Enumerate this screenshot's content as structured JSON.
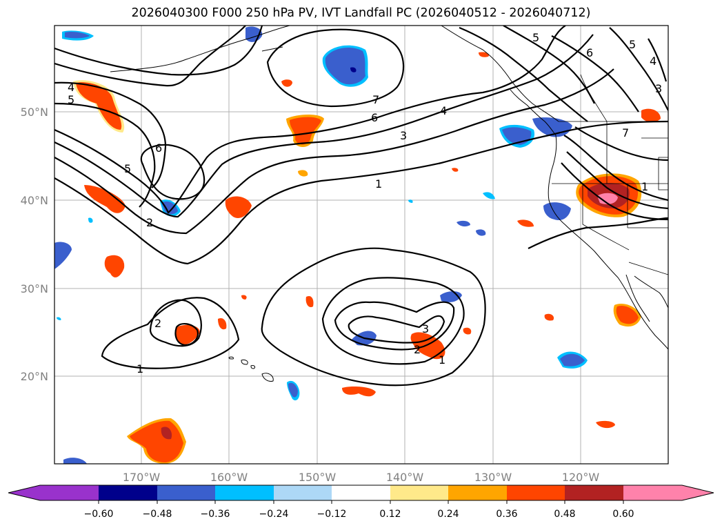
{
  "title": "2026040300 F000 250 hPa PV, IVT Landfall PC (2026040512 - 2026040712)",
  "lat_labels": [
    "50°N",
    "40°N",
    "30°N",
    "20°N"
  ],
  "lon_labels": [
    "170°W",
    "160°W",
    "150°W",
    "140°W",
    "130°W",
    "120°W"
  ],
  "contour_labels": {
    "c1a": "1",
    "c1b": "1",
    "c1c": "1",
    "c1d": "1",
    "c2a": "2",
    "c2b": "2",
    "c2c": "2",
    "c3a": "3",
    "c3b": "3",
    "c3c": "3",
    "c4a": "4",
    "c4b": "4",
    "c4c": "4",
    "c5a": "5",
    "c5b": "5",
    "c5c": "5",
    "c5d": "5",
    "c6a": "6",
    "c6b": "6",
    "c6c": "6",
    "c7a": "7",
    "c7b": "7"
  },
  "colorbar": {
    "ticks": [
      "−0.60",
      "−0.48",
      "−0.36",
      "−0.24",
      "−0.12",
      "0.12",
      "0.24",
      "0.36",
      "0.48",
      "0.60"
    ],
    "colors": [
      "#9932cc",
      "#00008b",
      "#3a5fcd",
      "#00bfff",
      "#add8f6",
      "#ffffff",
      "#ffe98a",
      "#ffa500",
      "#ff4500",
      "#b22222",
      "#ff82ab",
      "#ff82ab"
    ]
  }
}
